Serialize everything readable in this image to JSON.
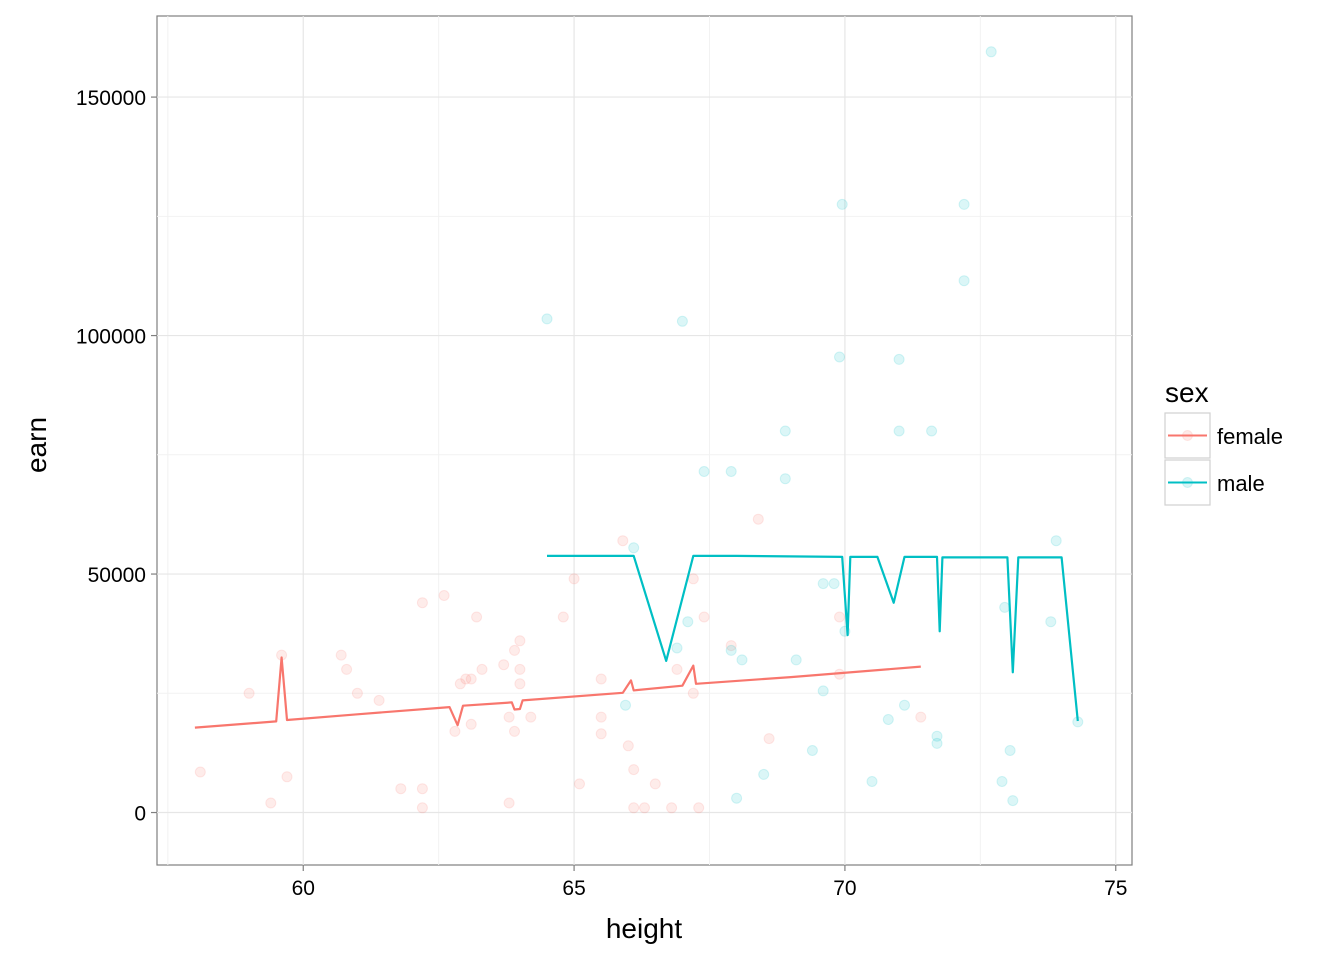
{
  "chart_data": {
    "type": "scatter",
    "title": "",
    "xlabel": "height",
    "ylabel": "earn",
    "xlim": [
      57.3,
      75.3
    ],
    "ylim": [
      -11000,
      167000
    ],
    "x_ticks": [
      60,
      65,
      70,
      75
    ],
    "x_tick_labels": [
      "60",
      "65",
      "70",
      "75"
    ],
    "y_ticks": [
      0,
      50000,
      100000,
      150000
    ],
    "y_tick_labels": [
      "0",
      "50000",
      "100000",
      "150000"
    ],
    "grid": true,
    "legend": {
      "title": "sex",
      "placement": "right",
      "entries": [
        "female",
        "male"
      ]
    },
    "series": [
      {
        "name": "female",
        "color": "#F8766D",
        "points": [
          [
            58.1,
            8500
          ],
          [
            59.0,
            25000
          ],
          [
            59.4,
            2000
          ],
          [
            59.6,
            33000
          ],
          [
            59.7,
            7500
          ],
          [
            60.7,
            33000
          ],
          [
            60.8,
            30000
          ],
          [
            61.0,
            25000
          ],
          [
            61.4,
            23500
          ],
          [
            61.8,
            5000
          ],
          [
            62.2,
            44000
          ],
          [
            62.2,
            5000
          ],
          [
            62.2,
            1000
          ],
          [
            62.6,
            45500
          ],
          [
            62.8,
            17000
          ],
          [
            62.9,
            27000
          ],
          [
            63.0,
            28000
          ],
          [
            63.1,
            28000
          ],
          [
            63.1,
            18500
          ],
          [
            63.2,
            41000
          ],
          [
            63.3,
            30000
          ],
          [
            63.7,
            31000
          ],
          [
            63.8,
            2000
          ],
          [
            63.8,
            20000
          ],
          [
            63.9,
            34000
          ],
          [
            63.9,
            17000
          ],
          [
            64.0,
            27000
          ],
          [
            64.0,
            30000
          ],
          [
            64.0,
            36000
          ],
          [
            64.2,
            20000
          ],
          [
            64.8,
            41000
          ],
          [
            65.0,
            49000
          ],
          [
            65.1,
            6000
          ],
          [
            65.5,
            28000
          ],
          [
            65.5,
            20000
          ],
          [
            65.5,
            16500
          ],
          [
            65.9,
            57000
          ],
          [
            66.0,
            14000
          ],
          [
            66.1,
            9000
          ],
          [
            66.1,
            1000
          ],
          [
            66.3,
            1000
          ],
          [
            66.5,
            6000
          ],
          [
            66.8,
            1000
          ],
          [
            66.9,
            30000
          ],
          [
            67.2,
            49000
          ],
          [
            67.2,
            25000
          ],
          [
            67.3,
            1000
          ],
          [
            67.4,
            41000
          ],
          [
            67.9,
            35000
          ],
          [
            68.4,
            61500
          ],
          [
            68.6,
            15500
          ],
          [
            69.9,
            41000
          ],
          [
            69.9,
            29000
          ],
          [
            71.4,
            20000
          ]
        ],
        "fit_line": [
          [
            58.0,
            17800
          ],
          [
            59.5,
            19100
          ],
          [
            59.6,
            32500
          ],
          [
            59.7,
            19400
          ],
          [
            61.0,
            20600
          ],
          [
            62.7,
            22100
          ],
          [
            62.85,
            18300
          ],
          [
            62.95,
            22400
          ],
          [
            63.85,
            23100
          ],
          [
            63.9,
            21600
          ],
          [
            64.0,
            21700
          ],
          [
            64.05,
            23500
          ],
          [
            65.9,
            25100
          ],
          [
            66.05,
            27700
          ],
          [
            66.1,
            25600
          ],
          [
            67.0,
            26600
          ],
          [
            67.2,
            30800
          ],
          [
            67.25,
            27000
          ],
          [
            69.0,
            28400
          ],
          [
            71.4,
            30600
          ]
        ]
      },
      {
        "name": "male",
        "color": "#00BFC4",
        "points": [
          [
            64.5,
            103500
          ],
          [
            65.95,
            22500
          ],
          [
            66.1,
            55500
          ],
          [
            66.9,
            34500
          ],
          [
            67.0,
            103000
          ],
          [
            67.1,
            40000
          ],
          [
            67.4,
            71500
          ],
          [
            67.9,
            71500
          ],
          [
            67.9,
            34000
          ],
          [
            68.0,
            3000
          ],
          [
            68.1,
            32000
          ],
          [
            68.5,
            8000
          ],
          [
            68.9,
            80000
          ],
          [
            68.9,
            70000
          ],
          [
            69.1,
            32000
          ],
          [
            69.4,
            13000
          ],
          [
            69.6,
            25500
          ],
          [
            69.6,
            48000
          ],
          [
            69.8,
            48000
          ],
          [
            69.9,
            95500
          ],
          [
            69.95,
            127500
          ],
          [
            70.0,
            38000
          ],
          [
            70.5,
            6500
          ],
          [
            70.8,
            19500
          ],
          [
            71.0,
            95000
          ],
          [
            71.0,
            80000
          ],
          [
            71.1,
            22500
          ],
          [
            71.6,
            80000
          ],
          [
            71.7,
            14500
          ],
          [
            71.7,
            16000
          ],
          [
            72.2,
            127500
          ],
          [
            72.2,
            111500
          ],
          [
            72.7,
            159500
          ],
          [
            72.9,
            6500
          ],
          [
            72.95,
            43000
          ],
          [
            73.05,
            13000
          ],
          [
            73.1,
            2500
          ],
          [
            73.8,
            40000
          ],
          [
            73.9,
            57000
          ],
          [
            74.3,
            19000
          ]
        ],
        "fit_line": [
          [
            64.5,
            53800
          ],
          [
            66.1,
            53800
          ],
          [
            66.7,
            31800
          ],
          [
            67.2,
            53800
          ],
          [
            68.0,
            53800
          ],
          [
            69.95,
            53600
          ],
          [
            70.05,
            37200
          ],
          [
            70.1,
            53600
          ],
          [
            70.6,
            53600
          ],
          [
            70.9,
            44000
          ],
          [
            71.1,
            53600
          ],
          [
            71.7,
            53600
          ],
          [
            71.75,
            38000
          ],
          [
            71.8,
            53500
          ],
          [
            73.0,
            53500
          ],
          [
            73.1,
            29400
          ],
          [
            73.2,
            53500
          ],
          [
            74.0,
            53500
          ],
          [
            74.3,
            19200
          ]
        ]
      }
    ]
  }
}
